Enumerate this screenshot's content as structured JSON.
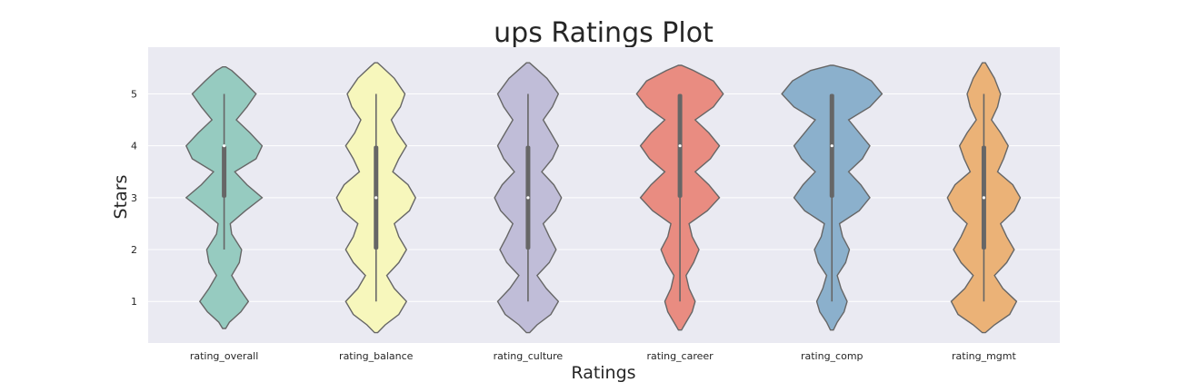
{
  "chart_data": {
    "type": "violin",
    "title": "ups Ratings Plot",
    "xlabel": "Ratings",
    "ylabel": "Stars",
    "ylim": [
      0.2,
      5.9
    ],
    "yticks": [
      1,
      2,
      3,
      4,
      5
    ],
    "grid": true,
    "background": "#eaeaf2",
    "categories": [
      "rating_overall",
      "rating_balance",
      "rating_culture",
      "rating_career",
      "rating_comp",
      "rating_mgmt"
    ],
    "series": [
      {
        "color": "#96cbc0",
        "stats": {
          "min": 2,
          "q1": 3,
          "median": 4,
          "q3": 4,
          "max": 5
        },
        "extent": [
          0.48,
          5.52
        ],
        "density": [
          [
            0.48,
            0.02
          ],
          [
            0.6,
            0.07
          ],
          [
            0.8,
            0.22
          ],
          [
            1.0,
            0.32
          ],
          [
            1.25,
            0.2
          ],
          [
            1.5,
            0.1
          ],
          [
            1.75,
            0.2
          ],
          [
            2.0,
            0.23
          ],
          [
            2.3,
            0.1
          ],
          [
            2.5,
            0.08
          ],
          [
            2.75,
            0.28
          ],
          [
            3.0,
            0.5
          ],
          [
            3.25,
            0.3
          ],
          [
            3.5,
            0.14
          ],
          [
            3.75,
            0.42
          ],
          [
            4.0,
            0.5
          ],
          [
            4.25,
            0.34
          ],
          [
            4.5,
            0.16
          ],
          [
            4.75,
            0.3
          ],
          [
            5.0,
            0.42
          ],
          [
            5.25,
            0.25
          ],
          [
            5.45,
            0.1
          ],
          [
            5.52,
            0.02
          ]
        ]
      },
      {
        "color": "#f7f7bc",
        "stats": {
          "min": 1,
          "q1": 2,
          "median": 3,
          "q3": 4,
          "max": 5
        },
        "extent": [
          0.4,
          5.6
        ],
        "density": [
          [
            0.4,
            0.02
          ],
          [
            0.55,
            0.12
          ],
          [
            0.75,
            0.3
          ],
          [
            1.0,
            0.4
          ],
          [
            1.25,
            0.24
          ],
          [
            1.5,
            0.14
          ],
          [
            1.75,
            0.3
          ],
          [
            2.0,
            0.4
          ],
          [
            2.25,
            0.3
          ],
          [
            2.5,
            0.24
          ],
          [
            2.75,
            0.44
          ],
          [
            3.0,
            0.52
          ],
          [
            3.25,
            0.42
          ],
          [
            3.5,
            0.22
          ],
          [
            3.75,
            0.3
          ],
          [
            4.0,
            0.4
          ],
          [
            4.25,
            0.28
          ],
          [
            4.5,
            0.2
          ],
          [
            4.75,
            0.32
          ],
          [
            5.0,
            0.38
          ],
          [
            5.3,
            0.24
          ],
          [
            5.52,
            0.08
          ],
          [
            5.6,
            0.02
          ]
        ]
      },
      {
        "color": "#c0bdd8",
        "stats": {
          "min": 1,
          "q1": 2,
          "median": 3,
          "q3": 4,
          "max": 5
        },
        "extent": [
          0.4,
          5.6
        ],
        "density": [
          [
            0.4,
            0.02
          ],
          [
            0.55,
            0.12
          ],
          [
            0.75,
            0.3
          ],
          [
            1.0,
            0.4
          ],
          [
            1.25,
            0.24
          ],
          [
            1.5,
            0.12
          ],
          [
            1.75,
            0.28
          ],
          [
            2.0,
            0.37
          ],
          [
            2.25,
            0.28
          ],
          [
            2.5,
            0.2
          ],
          [
            2.75,
            0.36
          ],
          [
            3.0,
            0.44
          ],
          [
            3.25,
            0.34
          ],
          [
            3.5,
            0.18
          ],
          [
            3.75,
            0.32
          ],
          [
            4.0,
            0.4
          ],
          [
            4.25,
            0.3
          ],
          [
            4.5,
            0.2
          ],
          [
            4.75,
            0.32
          ],
          [
            5.0,
            0.4
          ],
          [
            5.3,
            0.25
          ],
          [
            5.52,
            0.08
          ],
          [
            5.6,
            0.02
          ]
        ]
      },
      {
        "color": "#e98c81",
        "stats": {
          "min": 1,
          "q1": 3,
          "median": 4,
          "q3": 5,
          "max": 5
        },
        "extent": [
          0.45,
          5.55
        ],
        "density": [
          [
            0.45,
            0.02
          ],
          [
            0.6,
            0.08
          ],
          [
            0.8,
            0.16
          ],
          [
            1.0,
            0.2
          ],
          [
            1.25,
            0.12
          ],
          [
            1.5,
            0.08
          ],
          [
            1.75,
            0.18
          ],
          [
            2.0,
            0.25
          ],
          [
            2.25,
            0.16
          ],
          [
            2.5,
            0.12
          ],
          [
            2.75,
            0.36
          ],
          [
            3.0,
            0.52
          ],
          [
            3.25,
            0.38
          ],
          [
            3.5,
            0.2
          ],
          [
            3.75,
            0.4
          ],
          [
            4.0,
            0.52
          ],
          [
            4.25,
            0.38
          ],
          [
            4.5,
            0.2
          ],
          [
            4.75,
            0.44
          ],
          [
            5.0,
            0.57
          ],
          [
            5.25,
            0.44
          ],
          [
            5.45,
            0.18
          ],
          [
            5.55,
            0.02
          ]
        ]
      },
      {
        "color": "#8bb0cc",
        "stats": {
          "min": 1,
          "q1": 3,
          "median": 4,
          "q3": 5,
          "max": 5
        },
        "extent": [
          0.45,
          5.55
        ],
        "density": [
          [
            0.45,
            0.02
          ],
          [
            0.6,
            0.07
          ],
          [
            0.8,
            0.16
          ],
          [
            1.0,
            0.2
          ],
          [
            1.25,
            0.12
          ],
          [
            1.5,
            0.07
          ],
          [
            1.75,
            0.18
          ],
          [
            2.0,
            0.23
          ],
          [
            2.25,
            0.14
          ],
          [
            2.5,
            0.1
          ],
          [
            2.75,
            0.36
          ],
          [
            3.0,
            0.5
          ],
          [
            3.25,
            0.38
          ],
          [
            3.5,
            0.22
          ],
          [
            3.75,
            0.4
          ],
          [
            4.0,
            0.5
          ],
          [
            4.25,
            0.36
          ],
          [
            4.5,
            0.22
          ],
          [
            4.75,
            0.5
          ],
          [
            5.0,
            0.66
          ],
          [
            5.25,
            0.52
          ],
          [
            5.45,
            0.28
          ],
          [
            5.55,
            0.02
          ]
        ]
      },
      {
        "color": "#ebb277",
        "stats": {
          "min": 1,
          "q1": 2,
          "median": 3,
          "q3": 4,
          "max": 5
        },
        "extent": [
          0.4,
          5.6
        ],
        "density": [
          [
            0.4,
            0.02
          ],
          [
            0.55,
            0.14
          ],
          [
            0.75,
            0.34
          ],
          [
            1.0,
            0.43
          ],
          [
            1.25,
            0.25
          ],
          [
            1.5,
            0.14
          ],
          [
            1.75,
            0.3
          ],
          [
            2.0,
            0.4
          ],
          [
            2.25,
            0.3
          ],
          [
            2.5,
            0.22
          ],
          [
            2.75,
            0.4
          ],
          [
            3.0,
            0.48
          ],
          [
            3.25,
            0.38
          ],
          [
            3.5,
            0.18
          ],
          [
            3.75,
            0.26
          ],
          [
            4.0,
            0.32
          ],
          [
            4.25,
            0.22
          ],
          [
            4.5,
            0.1
          ],
          [
            4.75,
            0.18
          ],
          [
            5.0,
            0.22
          ],
          [
            5.3,
            0.14
          ],
          [
            5.5,
            0.06
          ],
          [
            5.6,
            0.02
          ]
        ]
      }
    ]
  }
}
